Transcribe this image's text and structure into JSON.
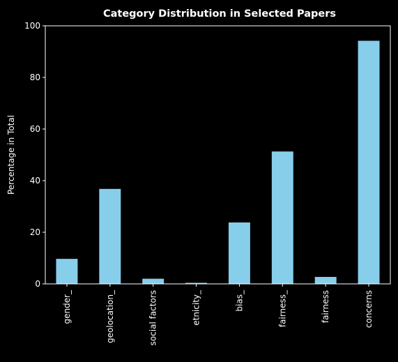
{
  "chart_data": {
    "type": "bar",
    "title": "Category Distribution in Selected Papers",
    "xlabel": "",
    "ylabel": "Percentage in Total",
    "categories": [
      "gender_",
      "geolocation_",
      "social factors",
      "etnicity_",
      "bias_",
      "fairness_",
      "fairness",
      "concerns"
    ],
    "values": [
      9.7,
      36.8,
      2.0,
      0.4,
      23.8,
      51.3,
      2.7,
      94.2
    ],
    "ylim": [
      0,
      100
    ],
    "yticks": [
      "0",
      "20",
      "40",
      "60",
      "80",
      "100"
    ],
    "grid": false,
    "legend": "none",
    "colors": {
      "bar": "#87ceeb",
      "background": "#000000",
      "axis": "#ffffff",
      "text": "#ffffff"
    }
  }
}
